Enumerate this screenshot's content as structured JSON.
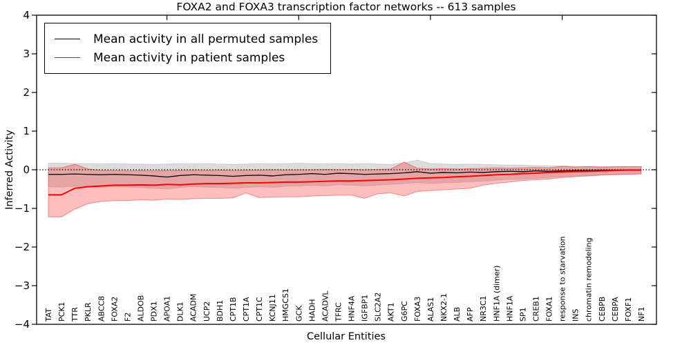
{
  "chart_data": {
    "type": "line",
    "title": "FOXA2 and FOXA3 transcription factor networks -- 613 samples",
    "xlabel": "Cellular Entities",
    "ylabel": "Inferred Activity",
    "ylim": [
      -4,
      4
    ],
    "yticks": [
      4,
      3,
      2,
      1,
      0,
      -1,
      -2,
      -3,
      -4
    ],
    "zero_line": "dotted",
    "grid": false,
    "legend_position": "upper-left",
    "x_tick_labels_inside": true,
    "top_tick_indices": [
      9,
      19,
      29,
      39
    ],
    "categories": [
      "TAT",
      "PCK1",
      "TTR",
      "PKLR",
      "ABCC8",
      "FOXA2",
      "F2",
      "ALDOB",
      "PDX1",
      "APOA1",
      "DLK1",
      "ACADM",
      "UCP2",
      "BDH1",
      "CPT1B",
      "CPT1A",
      "CPT1C",
      "KCNJ11",
      "HMGCS1",
      "GCK",
      "HADH",
      "ACADVL",
      "TFRC",
      "HNF4A",
      "IGFBP1",
      "SLC2A2",
      "AKT1",
      "G6PC",
      "FOXA3",
      "ALAS1",
      "NKX2-1",
      "ALB",
      "AFP",
      "NR3C1",
      "HNF1A (dimer)",
      "HNF1A",
      "SP1",
      "CREB1",
      "FOXA1",
      "response to starvation",
      "INS",
      "chromatin remodeling",
      "CEBPB",
      "CEBPA",
      "FOXF1",
      "NF1"
    ],
    "series": [
      {
        "name": "Mean activity in all permuted samples",
        "color": "#000000",
        "line_width": 1.3,
        "values": [
          -0.12,
          -0.12,
          -0.11,
          -0.12,
          -0.13,
          -0.12,
          -0.13,
          -0.14,
          -0.16,
          -0.19,
          -0.15,
          -0.13,
          -0.14,
          -0.15,
          -0.17,
          -0.15,
          -0.14,
          -0.16,
          -0.13,
          -0.12,
          -0.1,
          -0.12,
          -0.09,
          -0.1,
          -0.12,
          -0.11,
          -0.1,
          -0.08,
          -0.05,
          -0.09,
          -0.07,
          -0.08,
          -0.06,
          -0.07,
          -0.05,
          -0.04,
          -0.05,
          -0.03,
          -0.04,
          -0.03,
          -0.02,
          -0.02,
          -0.01,
          -0.01,
          -0.01,
          0.0
        ],
        "band": {
          "upper": [
            0.17,
            0.17,
            0.16,
            0.16,
            0.15,
            0.16,
            0.15,
            0.15,
            0.14,
            0.15,
            0.16,
            0.15,
            0.16,
            0.15,
            0.14,
            0.15,
            0.16,
            0.15,
            0.16,
            0.17,
            0.16,
            0.15,
            0.16,
            0.15,
            0.16,
            0.15,
            0.14,
            0.18,
            0.25,
            0.16,
            0.15,
            0.14,
            0.15,
            0.14,
            0.13,
            0.12,
            0.12,
            0.11,
            0.1,
            0.1,
            0.09,
            0.09,
            0.08,
            0.08,
            0.08,
            0.08
          ],
          "lower": [
            -0.44,
            -0.45,
            -0.43,
            -0.44,
            -0.45,
            -0.44,
            -0.45,
            -0.46,
            -0.48,
            -0.5,
            -0.46,
            -0.44,
            -0.45,
            -0.46,
            -0.48,
            -0.46,
            -0.44,
            -0.46,
            -0.43,
            -0.42,
            -0.4,
            -0.42,
            -0.39,
            -0.4,
            -0.42,
            -0.4,
            -0.38,
            -0.36,
            -0.33,
            -0.36,
            -0.34,
            -0.33,
            -0.31,
            -0.3,
            -0.27,
            -0.25,
            -0.24,
            -0.22,
            -0.2,
            -0.18,
            -0.16,
            -0.15,
            -0.13,
            -0.12,
            -0.11,
            -0.1
          ],
          "fill": "rgba(128,128,128,0.28)",
          "edge": "rgba(0,0,0,0.12)"
        }
      },
      {
        "name": "Mean activity in patient samples",
        "color": "#ff0000",
        "line_width": 2,
        "values": [
          -0.65,
          -0.65,
          -0.48,
          -0.44,
          -0.42,
          -0.4,
          -0.4,
          -0.39,
          -0.4,
          -0.38,
          -0.39,
          -0.37,
          -0.36,
          -0.36,
          -0.35,
          -0.34,
          -0.34,
          -0.33,
          -0.32,
          -0.32,
          -0.31,
          -0.3,
          -0.29,
          -0.29,
          -0.28,
          -0.27,
          -0.26,
          -0.24,
          -0.22,
          -0.21,
          -0.2,
          -0.18,
          -0.17,
          -0.15,
          -0.13,
          -0.12,
          -0.1,
          -0.09,
          -0.07,
          -0.06,
          -0.05,
          -0.04,
          -0.03,
          -0.02,
          -0.01,
          -0.01
        ],
        "band": {
          "upper": [
            0.05,
            0.05,
            0.14,
            0.02,
            -0.02,
            -0.02,
            -0.03,
            -0.02,
            -0.03,
            -0.02,
            -0.02,
            -0.01,
            -0.02,
            -0.01,
            -0.02,
            -0.01,
            -0.01,
            0.0,
            -0.01,
            0.0,
            0.0,
            0.01,
            0.0,
            0.01,
            0.0,
            0.01,
            0.02,
            0.2,
            0.04,
            0.02,
            0.03,
            0.02,
            0.03,
            0.04,
            0.05,
            0.04,
            0.05,
            0.06,
            0.05,
            0.09,
            0.07,
            0.08,
            0.07,
            0.08,
            0.08,
            0.08
          ],
          "lower": [
            -1.22,
            -1.22,
            -1.02,
            -0.88,
            -0.82,
            -0.8,
            -0.8,
            -0.78,
            -0.79,
            -0.76,
            -0.77,
            -0.75,
            -0.74,
            -0.74,
            -0.73,
            -0.6,
            -0.72,
            -0.71,
            -0.7,
            -0.7,
            -0.68,
            -0.67,
            -0.66,
            -0.66,
            -0.74,
            -0.62,
            -0.6,
            -0.68,
            -0.56,
            -0.54,
            -0.52,
            -0.5,
            -0.48,
            -0.4,
            -0.35,
            -0.32,
            -0.28,
            -0.26,
            -0.24,
            -0.2,
            -0.18,
            -0.16,
            -0.14,
            -0.13,
            -0.12,
            -0.11
          ],
          "fill": "rgba(255,40,40,0.30)",
          "edge": "rgba(230,30,30,0.45)"
        }
      }
    ]
  }
}
